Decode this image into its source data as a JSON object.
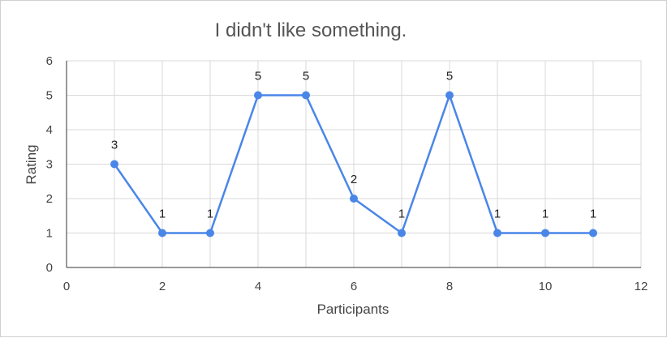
{
  "chart_data": {
    "type": "scatter",
    "title": "I didn't like something.",
    "xlabel": "Participants",
    "ylabel": "Rating",
    "xlim": [
      0,
      12
    ],
    "ylim": [
      0,
      6
    ],
    "xticks": [
      0,
      2,
      4,
      6,
      8,
      10,
      12
    ],
    "yticks": [
      0,
      1,
      2,
      3,
      4,
      5,
      6
    ],
    "grid": true,
    "legend": "none",
    "series": [
      {
        "color": "#4a86e8",
        "x": [
          1,
          2,
          3,
          4,
          5,
          6,
          7,
          8,
          9,
          10,
          11
        ],
        "y": [
          3,
          1,
          1,
          5,
          5,
          2,
          1,
          5,
          1,
          1,
          1
        ],
        "data_labels": [
          "3",
          "1",
          "1",
          "5",
          "5",
          "2",
          "1",
          "5",
          "1",
          "1",
          "1"
        ]
      }
    ]
  }
}
